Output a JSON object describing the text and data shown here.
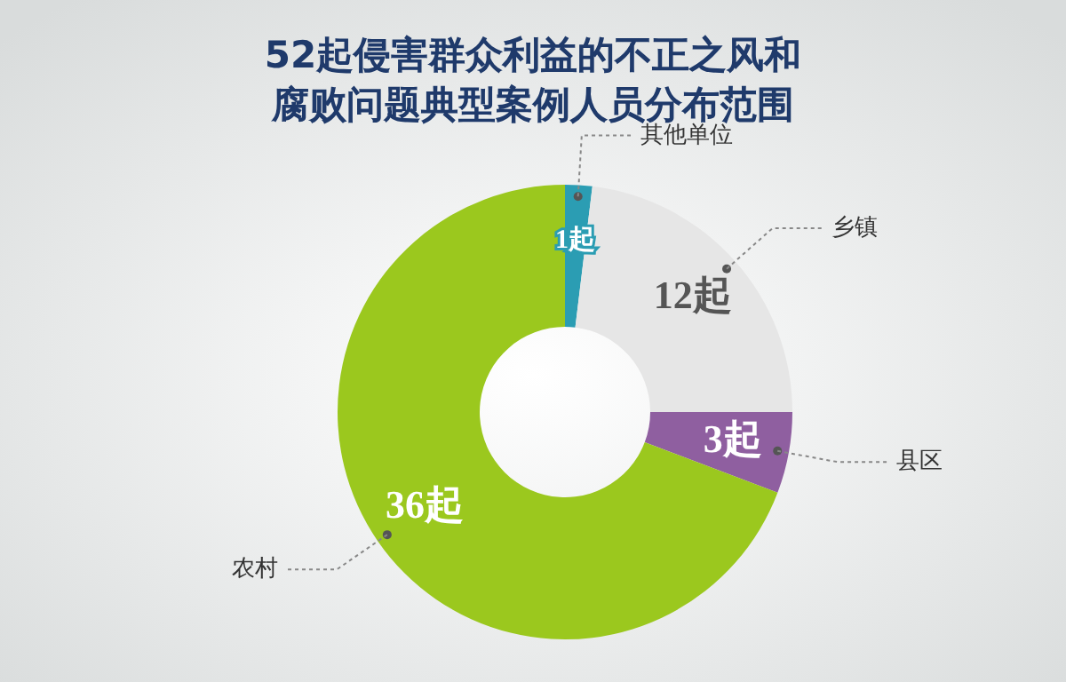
{
  "chart_data": {
    "type": "donut",
    "title": "52起侵害群众利益的不正之风和腐败问题典型案例人员分布范围",
    "categories": [
      "其他单位",
      "乡镇",
      "县区",
      "农村"
    ],
    "values": [
      1,
      12,
      3,
      36
    ],
    "colors": [
      "#2b9db3",
      "#e6e6e6",
      "#8f5fa0",
      "#9bc81e"
    ],
    "value_labels": [
      "1起",
      "12起",
      "3起",
      "36起"
    ]
  }
}
